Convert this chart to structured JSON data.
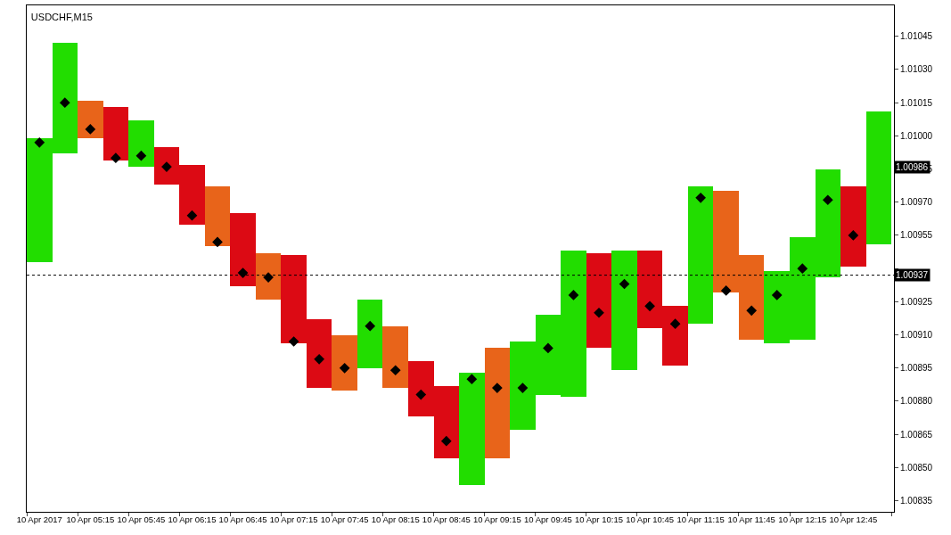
{
  "chart_data": {
    "type": "bar",
    "title": "USDCHF,M15",
    "categories": [
      "10 Apr 2017",
      null,
      "10 Apr 05:15",
      null,
      "10 Apr 05:45",
      null,
      "10 Apr 06:15",
      null,
      "10 Apr 06:45",
      null,
      "10 Apr 07:15",
      null,
      "10 Apr 07:45",
      null,
      "10 Apr 08:15",
      null,
      "10 Apr 08:45",
      null,
      "10 Apr 09:15",
      null,
      "10 Apr 09:45",
      null,
      "10 Apr 10:15",
      null,
      "10 Apr 10:45",
      null,
      "10 Apr 11:15",
      null,
      "10 Apr 11:45",
      null,
      "10 Apr 12:15",
      null,
      "10 Apr 12:45",
      null
    ],
    "series": [
      {
        "base": [
          1.00943,
          1.00992,
          1.00999,
          1.00989,
          1.00986,
          1.00978,
          1.0096,
          1.0095,
          1.00932,
          1.00926,
          1.00906,
          1.00886,
          1.00885,
          1.00895,
          1.00886,
          1.00873,
          1.00854,
          1.00842,
          1.00854,
          1.00867,
          1.00883,
          1.00882,
          1.00904,
          1.00894,
          1.00913,
          1.00896,
          1.00915,
          1.00929,
          1.00908,
          1.00906,
          1.00908,
          1.00936,
          1.00941,
          1.00951
        ],
        "values": [
          0.00056,
          0.0005,
          0.00017,
          0.00024,
          0.00021,
          0.00017,
          0.00027,
          0.00027,
          0.00033,
          0.00021,
          0.0004,
          0.00031,
          0.00025,
          0.00031,
          0.00028,
          0.00025,
          0.00033,
          0.00051,
          0.0005,
          0.0004,
          0.00036,
          0.00066,
          0.00043,
          0.00054,
          0.00035,
          0.00027,
          0.00062,
          0.00046,
          0.00038,
          0.00033,
          0.00046,
          0.00049,
          0.00036,
          0.0006
        ],
        "colors": [
          "#22dd00",
          "#22dd00",
          "#e8641a",
          "#dc0a14",
          "#22dd00",
          "#dc0a14",
          "#dc0a14",
          "#e8641a",
          "#dc0a14",
          "#e8641a",
          "#dc0a14",
          "#dc0a14",
          "#e8641a",
          "#22dd00",
          "#e8641a",
          "#dc0a14",
          "#dc0a14",
          "#22dd00",
          "#e8641a",
          "#22dd00",
          "#22dd00",
          "#22dd00",
          "#dc0a14",
          "#22dd00",
          "#dc0a14",
          "#dc0a14",
          "#22dd00",
          "#e8641a",
          "#e8641a",
          "#22dd00",
          "#22dd00",
          "#22dd00",
          "#dc0a14",
          "#22dd00"
        ]
      },
      {
        "type": "scatter",
        "color": "#000000",
        "marker": "diamond",
        "values": [
          1.00997,
          1.01015,
          1.01003,
          1.0099,
          1.00991,
          1.00986,
          1.00964,
          1.00952,
          1.00938,
          1.00936,
          1.00907,
          1.00899,
          1.00895,
          1.00914,
          1.00894,
          1.00883,
          1.00862,
          1.0089,
          1.00886,
          1.00886,
          1.00904,
          1.00928,
          1.0092,
          1.00933,
          1.00923,
          1.00915,
          1.00972,
          1.0093,
          1.00921,
          1.00928,
          1.0094,
          1.00971,
          1.00955,
          null
        ]
      }
    ],
    "ylim": [
      1.0083,
      1.01059
    ],
    "yticks": [
      1.00835,
      {
        "value": 1.0085,
        "label": "1.00850"
      },
      1.00865,
      {
        "value": 1.0088,
        "label": "1.00880"
      },
      1.00895,
      {
        "value": 1.0091,
        "label": "1.00910"
      },
      1.00925,
      {
        "value": 1.0094,
        "label": null
      },
      1.00955,
      {
        "value": 1.0097,
        "label": "1.00970"
      },
      1.00985,
      {
        "value": 1.01,
        "label": "1.01000"
      },
      1.01015,
      {
        "value": 1.0103,
        "label": "1.01030"
      },
      1.01045
    ],
    "ref_lines": [
      {
        "axis": "y",
        "value": 1.00937,
        "label": "1.00937",
        "line_style": "dotted",
        "color": "#000000"
      }
    ],
    "annotations": [
      {
        "text": "1.00986",
        "y": 1.00986
      }
    ]
  }
}
